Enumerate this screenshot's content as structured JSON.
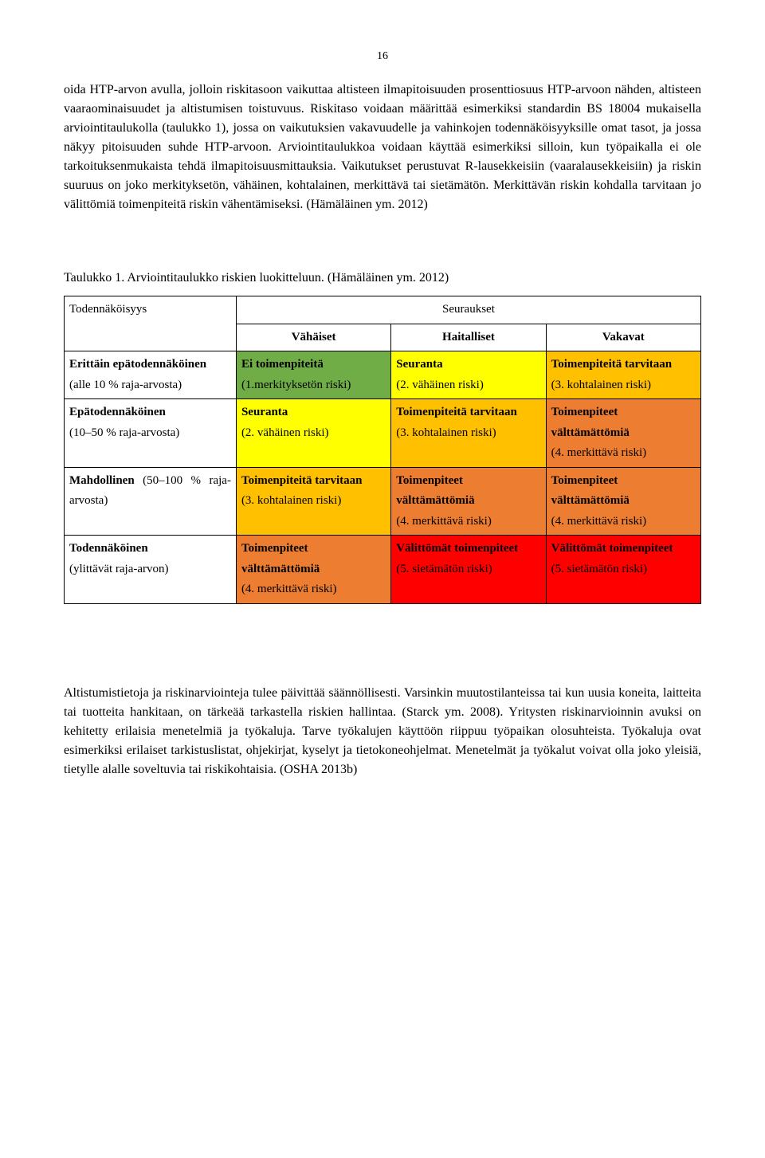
{
  "pageNumber": "16",
  "paragraphs": {
    "p1": "oida HTP-arvon avulla, jolloin riskitasoon vaikuttaa altisteen ilmapitoisuuden prosenttiosuus HTP-arvoon nähden, altisteen vaaraominaisuudet ja altistumisen toistuvuus. Riskitaso voidaan määrittää esimerkiksi standardin BS 18004 mukaisella arviointitaulukolla (taulukko 1), jossa on vaikutuksien vakavuudelle ja vahinkojen todennäköisyyksille omat tasot, ja jossa näkyy pitoisuuden suhde HTP-arvoon. Arviointitaulukkoa voidaan käyttää esimerkiksi silloin, kun työpaikalla ei ole tarkoituksenmukaista tehdä ilmapitoisuusmittauksia. Vaikutukset perustuvat R-lausekkeisiin (vaaralausekkeisiin) ja riskin suuruus on joko merkityksetön, vähäinen, kohtalainen, merkittävä tai sietämätön. Merkittävän riskin kohdalla tarvitaan jo välittömiä toimenpiteitä riskin vähentämiseksi. (Hämäläinen ym. 2012)",
    "caption": "Taulukko 1. Arviointitaulukko riskien luokitteluun. (Hämäläinen ym. 2012)",
    "p2": "Altistumistietoja ja riskinarviointeja tulee päivittää säännöllisesti. Varsinkin muutostilanteissa tai kun uusia koneita, laitteita tai tuotteita hankitaan, on tärkeää tarkastella riskien hallintaa. (Starck ym. 2008). Yritysten riskinarvioinnin avuksi on kehitetty erilaisia menetelmiä ja työkaluja. Tarve työkalujen käyttöön riippuu työpaikan olosuhteista. Työkaluja ovat esimerkiksi erilaiset tarkistuslistat, ohjekirjat, kyselyt ja tietokoneohjelmat. Menetelmät ja työkalut voivat olla joko yleisiä, tietylle alalle soveltuvia tai riskikohtaisia. (OSHA 2013b)"
  },
  "table": {
    "headerLeft": "Todennäköisyys",
    "headerMerged": "Seuraukset",
    "subheaders": [
      "Vähäiset",
      "Haitalliset",
      "Vakavat"
    ],
    "rows": [
      {
        "label_bold": "Erittäin epätodennäköinen",
        "label_note": "(alle 10 % raja-arvosta)",
        "cells": [
          {
            "color": "#70ad47",
            "bold": "Ei toimenpiteitä",
            "note": "(1.merkityksetön riski)"
          },
          {
            "color": "#ffff00",
            "bold": "Seuranta",
            "note": "(2. vähäinen riski)"
          },
          {
            "color": "#ffc000",
            "bold": "Toimenpiteitä tarvitaan",
            "note": "(3. kohtalainen riski)"
          }
        ]
      },
      {
        "label_bold": "Epätodennäköinen",
        "label_note": "(10–50 % raja-arvosta)",
        "cells": [
          {
            "color": "#ffff00",
            "bold": "Seuranta",
            "note": "(2. vähäinen riski)"
          },
          {
            "color": "#ffc000",
            "bold": "Toimenpiteitä tarvitaan",
            "note": "(3. kohtalainen riski)"
          },
          {
            "color": "#ed7d31",
            "bold": "Toimenpiteet välttämättömiä",
            "note": "(4. merkittävä riski)"
          }
        ]
      },
      {
        "label_bold": "Mahdollinen",
        "label_note": "(50–100 % raja-arvosta)",
        "cells": [
          {
            "color": "#ffc000",
            "bold": "Toimenpiteitä tarvitaan",
            "note": "(3. kohtalainen riski)"
          },
          {
            "color": "#ed7d31",
            "bold": "Toimenpiteet välttämättömiä",
            "note": "(4. merkittävä riski)"
          },
          {
            "color": "#ed7d31",
            "bold": "Toimenpiteet välttämättömiä",
            "note": "(4. merkittävä riski)"
          }
        ]
      },
      {
        "label_bold": "Todennäköinen",
        "label_note": "(ylittävät raja-arvon)",
        "cells": [
          {
            "color": "#ed7d31",
            "bold": "Toimenpiteet välttämättömiä",
            "note": "(4. merkittävä riski)"
          },
          {
            "color": "#ff0000",
            "bold": "Välittömät toimenpiteet",
            "note": "(5. sietämätön riski)"
          },
          {
            "color": "#ff0000",
            "bold": "Välittömät toimenpiteet",
            "note": "(5. sietämätön riski)"
          }
        ]
      }
    ]
  }
}
